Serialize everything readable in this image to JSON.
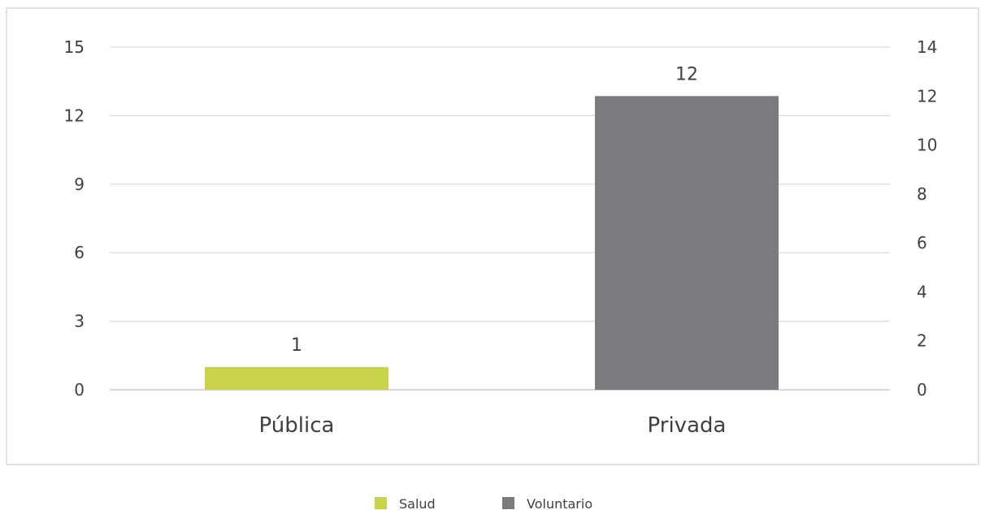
{
  "chart_data": {
    "type": "bar",
    "categories": [
      "Pública",
      "Privada"
    ],
    "series": [
      {
        "name": "Salud",
        "axis": "left",
        "color": "#c8d34a",
        "values": [
          1,
          null
        ]
      },
      {
        "name": "Voluntario",
        "axis": "right",
        "color": "#7b7b7f",
        "values": [
          null,
          12
        ]
      }
    ],
    "data_labels": [
      "1",
      "12"
    ],
    "y_left": {
      "min": 0,
      "max": 15,
      "ticks": [
        0,
        3,
        6,
        9,
        12,
        15
      ],
      "labels": [
        "0",
        "3",
        "6",
        "9",
        "12",
        "15"
      ]
    },
    "y_right": {
      "min": 0,
      "max": 14,
      "ticks": [
        0,
        2,
        4,
        6,
        8,
        10,
        12,
        14
      ],
      "labels": [
        "0",
        "2",
        "4",
        "6",
        "8",
        "10",
        "12",
        "14"
      ]
    },
    "grid": true,
    "legend": "bottom",
    "title": "",
    "xlabel": "",
    "ylabel": ""
  }
}
